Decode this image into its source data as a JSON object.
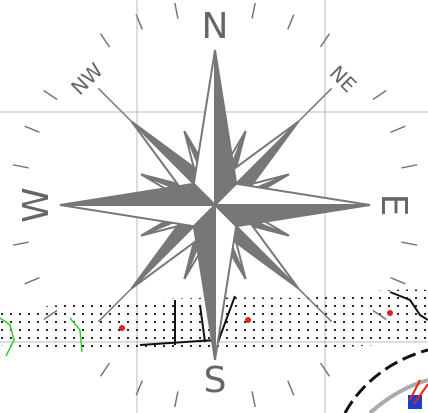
{
  "labels": {
    "n": "N",
    "ne": "NE",
    "e": "E",
    "s": "S",
    "w": "W",
    "nw": "NW"
  }
}
